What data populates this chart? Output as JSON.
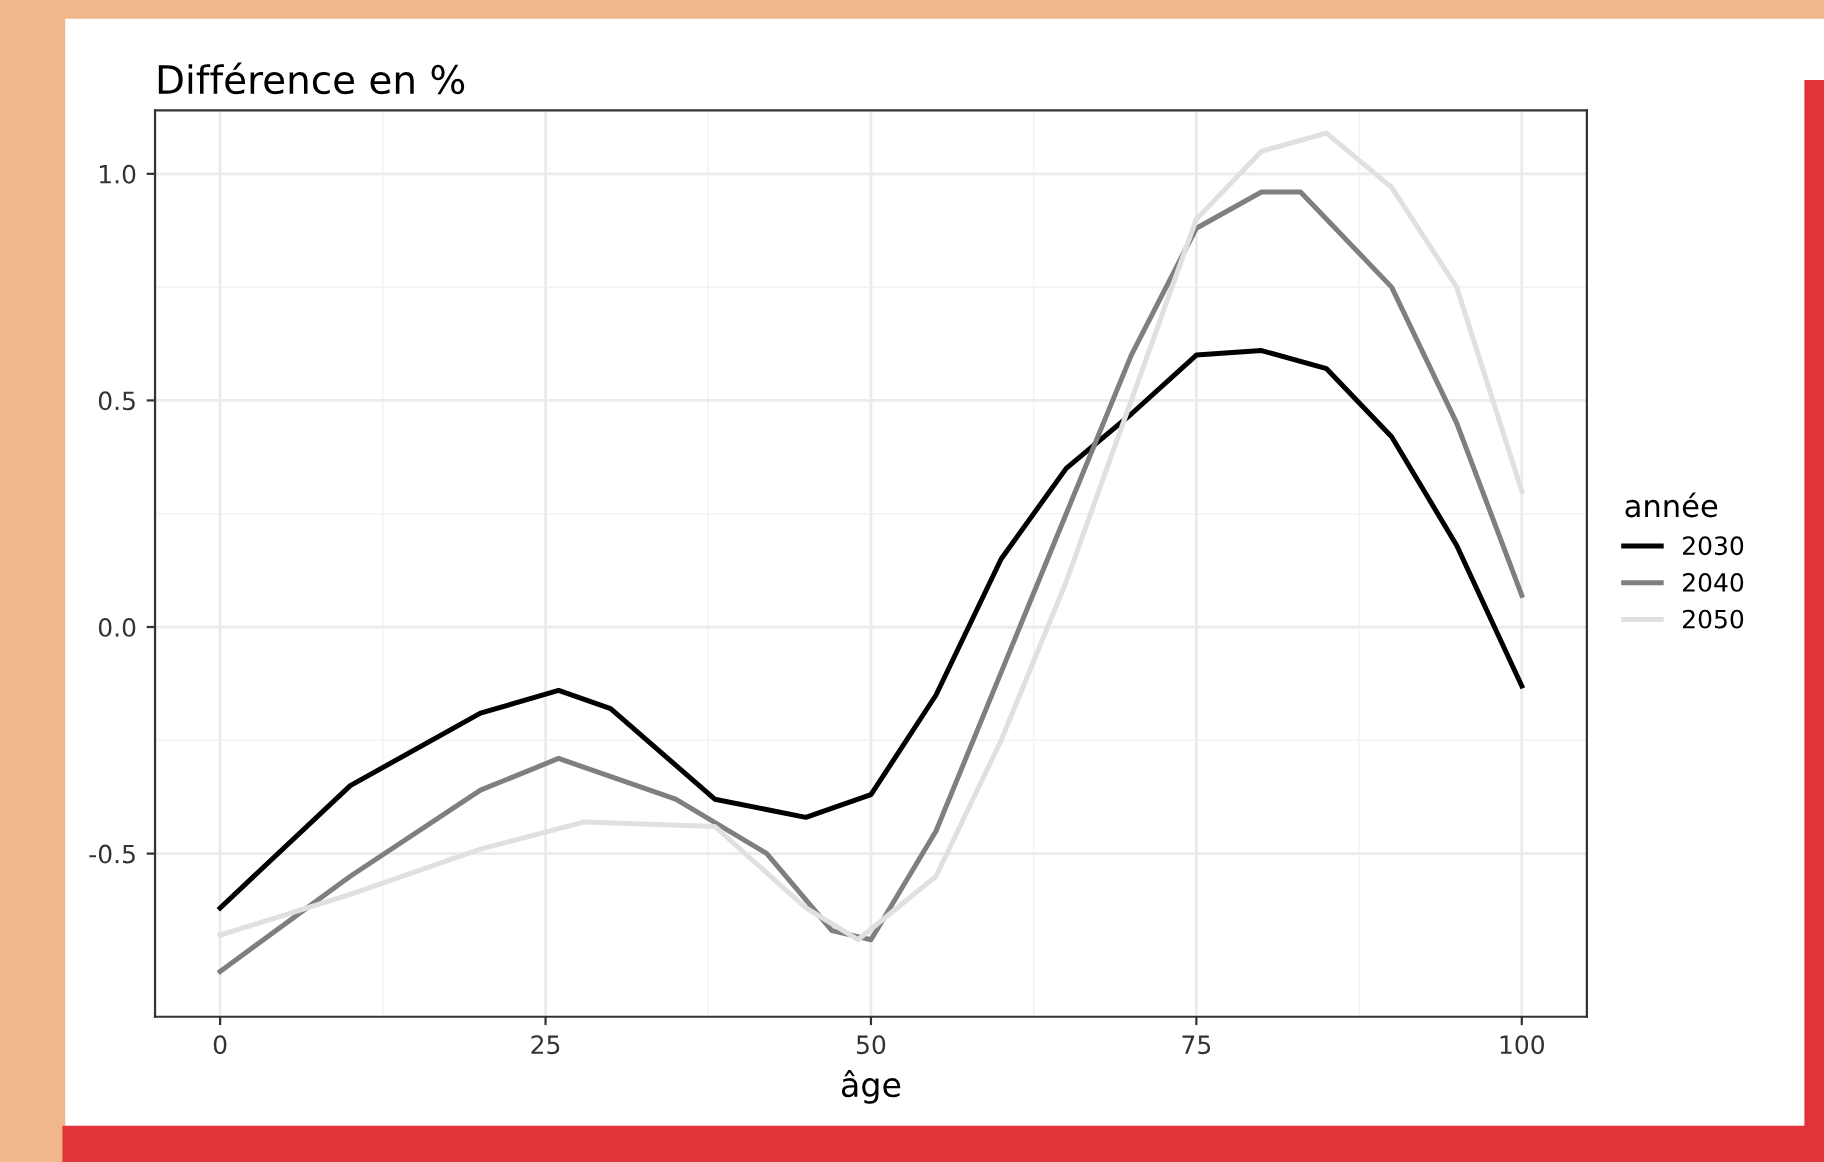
{
  "chart_data": {
    "type": "line",
    "title": "Différence en %",
    "xlabel": "âge",
    "legend_title": "année",
    "legend": "right",
    "grid": true,
    "xlim": [
      -5,
      105
    ],
    "xticks": [
      0,
      25,
      50,
      75,
      100
    ],
    "ylim": [
      -0.86,
      1.14
    ],
    "yticks": [
      {
        "value": -0.5,
        "label": "-0.5"
      },
      {
        "value": 0,
        "label": "0.0"
      },
      {
        "value": 0.5,
        "label": "0.5"
      },
      {
        "value": 1,
        "label": "1.0"
      }
    ],
    "x": [
      0,
      10,
      20,
      26,
      30,
      38,
      45,
      50,
      55,
      60,
      65,
      70,
      75,
      80,
      85,
      90,
      95,
      100
    ],
    "series": [
      {
        "name": "2030",
        "color": "#000000",
        "values": [
          -0.62,
          -0.35,
          -0.19,
          -0.14,
          -0.18,
          -0.38,
          -0.42,
          -0.37,
          -0.15,
          0.15,
          0.35,
          0.47,
          0.6,
          0.61,
          0.57,
          0.42,
          0.18,
          -0.13
        ]
      },
      {
        "name": "2040",
        "color": "#7f7f7f",
        "x": [
          0,
          10,
          20,
          26,
          35,
          42,
          47,
          50,
          55,
          60,
          65,
          70,
          75,
          80,
          83,
          90,
          95,
          100
        ],
        "values": [
          -0.76,
          -0.55,
          -0.36,
          -0.29,
          -0.38,
          -0.5,
          -0.67,
          -0.69,
          -0.45,
          -0.1,
          0.25,
          0.6,
          0.88,
          0.96,
          0.96,
          0.75,
          0.45,
          0.07
        ]
      },
      {
        "name": "2050",
        "color": "#e0e0e0",
        "x": [
          0,
          10,
          20,
          28,
          38,
          45,
          49,
          55,
          60,
          65,
          70,
          75,
          80,
          85,
          90,
          95,
          100
        ],
        "values": [
          -0.68,
          -0.59,
          -0.49,
          -0.43,
          -0.44,
          -0.62,
          -0.69,
          -0.55,
          -0.25,
          0.1,
          0.5,
          0.9,
          1.05,
          1.09,
          0.97,
          0.75,
          0.3
        ]
      }
    ]
  }
}
